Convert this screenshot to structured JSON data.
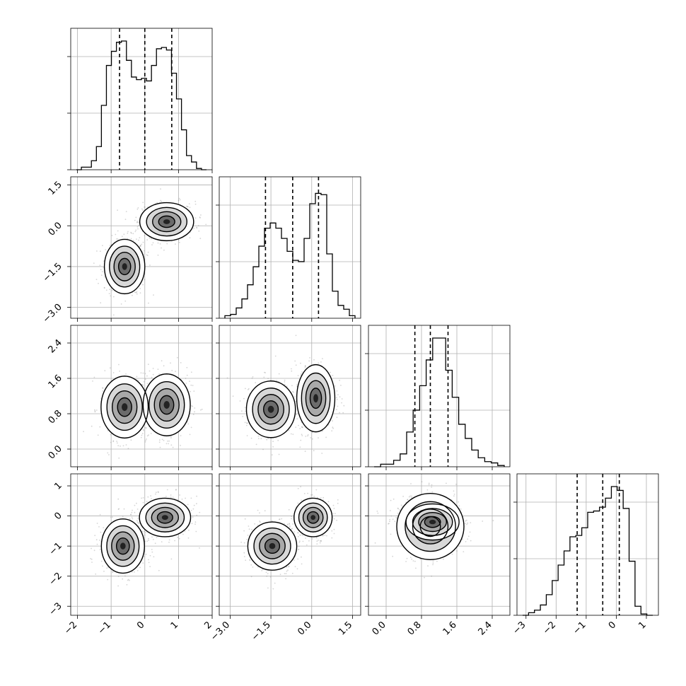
{
  "chart_data": {
    "type": "corner",
    "n_params": 4,
    "grid": true,
    "quantile_line_style": "dashed",
    "params": [
      {
        "range": [
          -2.2,
          2.0
        ],
        "ticks": [
          -2,
          -1,
          0,
          1,
          2
        ],
        "tick_labels": [
          "−2",
          "−1",
          "0",
          "1",
          "2"
        ],
        "quantiles": [
          -0.75,
          0.0,
          0.8
        ],
        "hist_counts": [
          0.0,
          0.02,
          0.02,
          0.07,
          0.18,
          0.5,
          0.81,
          0.92,
          0.99,
          1.0,
          0.85,
          0.72,
          0.7,
          0.71,
          0.69,
          0.81,
          0.94,
          0.95,
          0.93,
          0.75,
          0.55,
          0.31,
          0.11,
          0.06,
          0.01,
          0.0
        ]
      },
      {
        "range": [
          -3.4,
          1.8
        ],
        "ticks": [
          -3.0,
          -1.5,
          0.0,
          1.5
        ],
        "tick_labels": [
          "−3.0",
          "−1.5",
          "0.0",
          "1.5"
        ],
        "quantiles": [
          -1.7,
          -0.7,
          0.25
        ],
        "hist_counts": [
          0.02,
          0.03,
          0.08,
          0.15,
          0.26,
          0.4,
          0.56,
          0.7,
          0.74,
          0.7,
          0.62,
          0.52,
          0.45,
          0.44,
          0.62,
          0.89,
          0.97,
          0.96,
          0.5,
          0.21,
          0.1,
          0.07,
          0.02
        ]
      },
      {
        "range": [
          -0.4,
          2.8
        ],
        "ticks": [
          0.0,
          0.8,
          1.6,
          2.4
        ],
        "tick_labels": [
          "0.0",
          "0.8",
          "1.6",
          "2.4"
        ],
        "quantiles": [
          0.65,
          1.0,
          1.4
        ],
        "hist_counts": [
          0.0,
          0.02,
          0.02,
          0.05,
          0.1,
          0.27,
          0.44,
          0.63,
          0.83,
          1.0,
          1.0,
          0.75,
          0.54,
          0.33,
          0.22,
          0.13,
          0.07,
          0.04,
          0.03,
          0.01
        ]
      },
      {
        "range": [
          -3.3,
          1.4
        ],
        "ticks": [
          -3,
          -2,
          -1,
          0,
          1
        ],
        "tick_labels": [
          "−3",
          "−2",
          "−1",
          "0",
          "1"
        ],
        "quantiles": [
          -1.3,
          -0.45,
          0.1
        ],
        "hist_counts": [
          0.0,
          0.02,
          0.04,
          0.08,
          0.16,
          0.27,
          0.39,
          0.5,
          0.61,
          0.62,
          0.68,
          0.8,
          0.81,
          0.84,
          0.91,
          1.0,
          0.97,
          0.83,
          0.42,
          0.07,
          0.01,
          0.0
        ]
      }
    ],
    "mixture_components": [
      {
        "weight": 0.5,
        "mean": [
          -0.6,
          -1.5,
          1.0,
          -1.0
        ]
      },
      {
        "weight": 0.5,
        "mean": [
          0.6,
          0.1,
          1.0,
          0.0
        ]
      }
    ],
    "pairs": [
      {
        "row": 1,
        "col": 0,
        "blobs": [
          {
            "center": [
              -0.6,
              -1.5
            ],
            "sigma": [
              0.3,
              0.5
            ]
          },
          {
            "center": [
              0.65,
              0.15
            ],
            "sigma": [
              0.4,
              0.35
            ]
          }
        ]
      },
      {
        "row": 2,
        "col": 0,
        "blobs": [
          {
            "center": [
              -0.6,
              0.95
            ],
            "sigma": [
              0.35,
              0.35
            ]
          },
          {
            "center": [
              0.65,
              1.0
            ],
            "sigma": [
              0.35,
              0.35
            ]
          }
        ]
      },
      {
        "row": 2,
        "col": 1,
        "blobs": [
          {
            "center": [
              -1.5,
              0.9
            ],
            "sigma": [
              0.45,
              0.32
            ]
          },
          {
            "center": [
              0.15,
              1.15
            ],
            "sigma": [
              0.35,
              0.38
            ]
          }
        ]
      },
      {
        "row": 3,
        "col": 0,
        "blobs": [
          {
            "center": [
              -0.65,
              -1.0
            ],
            "sigma": [
              0.32,
              0.45
            ]
          },
          {
            "center": [
              0.6,
              -0.05
            ],
            "sigma": [
              0.38,
              0.32
            ]
          }
        ]
      },
      {
        "row": 3,
        "col": 1,
        "blobs": [
          {
            "center": [
              -1.45,
              -1.0
            ],
            "sigma": [
              0.45,
              0.4
            ]
          },
          {
            "center": [
              0.05,
              -0.05
            ],
            "sigma": [
              0.35,
              0.32
            ]
          }
        ]
      },
      {
        "row": 3,
        "col": 2,
        "blobs": [
          {
            "center": [
              1.0,
              -0.35
            ],
            "sigma": [
              0.38,
              0.55
            ]
          },
          {
            "center": [
              1.05,
              -0.2
            ],
            "sigma": [
              0.3,
              0.3
            ]
          }
        ]
      }
    ]
  }
}
